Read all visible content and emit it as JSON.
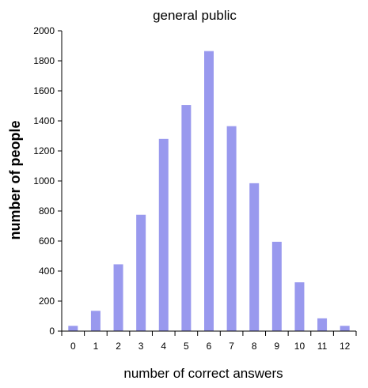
{
  "chart_data": {
    "type": "bar",
    "title": "general public",
    "xlabel": "number of correct answers",
    "ylabel": "number of people",
    "categories": [
      "0",
      "1",
      "2",
      "3",
      "4",
      "5",
      "6",
      "7",
      "8",
      "9",
      "10",
      "11",
      "12"
    ],
    "values": [
      35,
      135,
      445,
      775,
      1280,
      1505,
      1865,
      1365,
      985,
      595,
      325,
      85,
      35
    ],
    "ylim": [
      0,
      2000
    ],
    "yticks": [
      "0",
      "200",
      "400",
      "600",
      "800",
      "1000",
      "1200",
      "1400",
      "1600",
      "1800",
      "2000"
    ],
    "grid": false,
    "legend": false,
    "colors": {
      "bar": "#9999EE",
      "axis": "#000000"
    }
  }
}
